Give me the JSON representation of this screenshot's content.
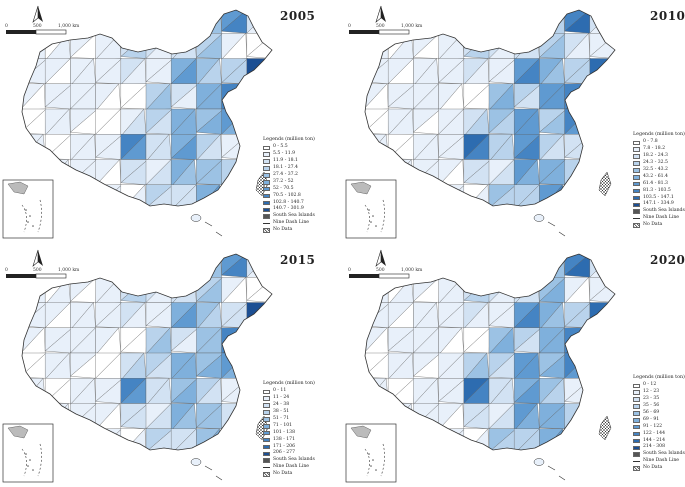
{
  "scale": {
    "zero": "0",
    "mid": "500",
    "max": "1,000 km"
  },
  "legend_title": "Legends (million ton)",
  "south_sea_label": "South Sea Islands",
  "nine_dash_label": "Nine Dash Line",
  "no_data_label": "No Data",
  "colors": {
    "ramp": [
      "#ffffff",
      "#e8f0fa",
      "#d2e2f3",
      "#b9d3ec",
      "#9cc2e4",
      "#7fb0dc",
      "#5f9ad1",
      "#4584c3",
      "#2d6cb0",
      "#1c4f93"
    ],
    "south_sea": "#555555",
    "outline": "#5a5a5a"
  },
  "panels": [
    {
      "year": "2005",
      "legend": [
        "0 - 5.5",
        "5.5 - 11.9",
        "11.9 - 18.1",
        "18.1 - 27.4",
        "27.4 - 37.2",
        "37.2 - 52",
        "52 - 70.5",
        "70.5 - 102.8",
        "102.8 - 140.7",
        "140.7 - 301.9"
      ],
      "region_levels": [
        0,
        1,
        2,
        0,
        1,
        3,
        5,
        4,
        6,
        2,
        1,
        0,
        3,
        4,
        7,
        2,
        5,
        3,
        1,
        0,
        4,
        6,
        8,
        3,
        2,
        1,
        5,
        4,
        3,
        9,
        2,
        6,
        4,
        1,
        0,
        3,
        2,
        5,
        7,
        1
      ]
    },
    {
      "year": "2010",
      "legend": [
        "0 - 7.8",
        "7.8 - 18.2",
        "18.2 - 24.3",
        "24.3 - 32.5",
        "32.5 - 43.2",
        "43.2 - 61.4",
        "61.4 - 81.3",
        "81.3 - 103.5",
        "103.5 - 147.1",
        "147.1 - 334.9"
      ],
      "region_levels": [
        0,
        1,
        2,
        1,
        2,
        4,
        6,
        3,
        7,
        2,
        1,
        0,
        4,
        5,
        8,
        3,
        6,
        3,
        2,
        1,
        5,
        7,
        9,
        4,
        2,
        1,
        6,
        5,
        3,
        8,
        2,
        5,
        4,
        1,
        0,
        4,
        3,
        6,
        7,
        2
      ]
    },
    {
      "year": "2015",
      "legend": [
        "0 - 11",
        "11 - 24",
        "24 - 38",
        "38 - 51",
        "51 - 71",
        "71 - 101",
        "101 - 138",
        "138 - 171",
        "171 - 206",
        "206 - 277"
      ],
      "region_levels": [
        0,
        1,
        1,
        0,
        2,
        3,
        5,
        4,
        6,
        2,
        1,
        0,
        3,
        5,
        7,
        2,
        4,
        3,
        1,
        0,
        4,
        6,
        8,
        3,
        2,
        1,
        5,
        4,
        2,
        9,
        1,
        6,
        3,
        1,
        0,
        3,
        2,
        4,
        7,
        1
      ]
    },
    {
      "year": "2020",
      "legend": [
        "0 - 12",
        "12 - 23",
        "23 - 35",
        "35 - 56",
        "56 - 69",
        "69 - 91",
        "91 - 122",
        "122 - 144",
        "144 - 214",
        "214 - 308"
      ],
      "region_levels": [
        0,
        1,
        2,
        1,
        3,
        3,
        6,
        4,
        7,
        2,
        1,
        0,
        4,
        5,
        8,
        2,
        5,
        4,
        1,
        1,
        5,
        6,
        9,
        3,
        2,
        1,
        6,
        5,
        3,
        8,
        2,
        6,
        4,
        1,
        0,
        4,
        3,
        5,
        7,
        2
      ]
    }
  ]
}
